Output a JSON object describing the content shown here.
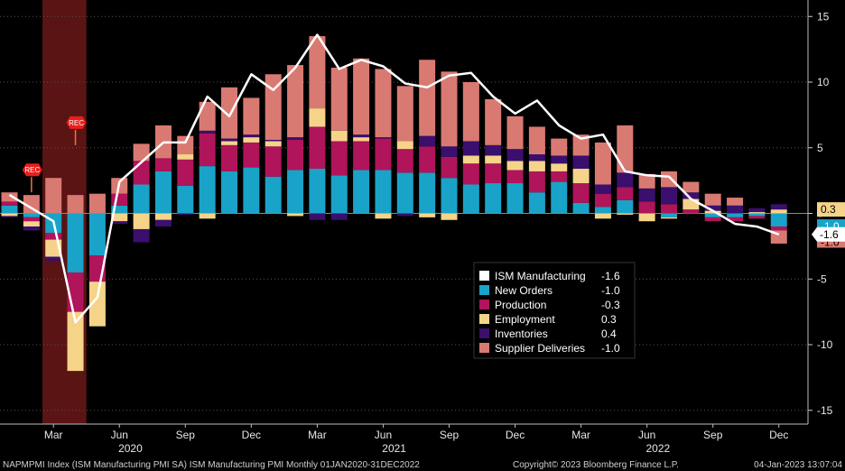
{
  "chart_data": {
    "type": "bar",
    "stacked": true,
    "x": [
      "Jan 2020",
      "Feb 2020",
      "Mar 2020",
      "Apr 2020",
      "May 2020",
      "Jun 2020",
      "Jul 2020",
      "Aug 2020",
      "Sep 2020",
      "Oct 2020",
      "Nov 2020",
      "Dec 2020",
      "Jan 2021",
      "Feb 2021",
      "Mar 2021",
      "Apr 2021",
      "May 2021",
      "Jun 2021",
      "Jul 2021",
      "Aug 2021",
      "Sep 2021",
      "Oct 2021",
      "Nov 2021",
      "Dec 2021",
      "Jan 2022",
      "Feb 2022",
      "Mar 2022",
      "Apr 2022",
      "May 2022",
      "Jun 2022",
      "Jul 2022",
      "Aug 2022",
      "Sep 2022",
      "Oct 2022",
      "Nov 2022",
      "Dec 2022"
    ],
    "ylim": [
      -16,
      16
    ],
    "yticks": [
      15,
      10,
      5,
      0,
      -5,
      -10,
      -15
    ],
    "month_ticks": [
      {
        "index": 2,
        "label": "Mar"
      },
      {
        "index": 5,
        "label": "Jun"
      },
      {
        "index": 8,
        "label": "Sep"
      },
      {
        "index": 11,
        "label": "Dec"
      },
      {
        "index": 14,
        "label": "Mar"
      },
      {
        "index": 17,
        "label": "Jun"
      },
      {
        "index": 20,
        "label": "Sep"
      },
      {
        "index": 23,
        "label": "Dec"
      },
      {
        "index": 26,
        "label": "Mar"
      },
      {
        "index": 29,
        "label": "Jun"
      },
      {
        "index": 32,
        "label": "Sep"
      },
      {
        "index": 35,
        "label": "Dec"
      }
    ],
    "year_ticks": [
      {
        "index": 5.5,
        "label": "2020"
      },
      {
        "index": 17.5,
        "label": "2021"
      },
      {
        "index": 29.5,
        "label": "2022"
      }
    ],
    "recession": {
      "start": 1.5,
      "end": 3.5
    },
    "rec_markers": [
      {
        "index": 1,
        "label": "REC",
        "value": 1.6
      },
      {
        "index": 3,
        "label": "REC",
        "value": 5.2
      }
    ],
    "series": [
      {
        "name": "New Orders",
        "color": "#1aa3c8",
        "latest": "-1.0",
        "values": [
          0.6,
          -0.3,
          -1.5,
          -4.5,
          -3.2,
          0.6,
          2.2,
          3.2,
          2.1,
          3.6,
          3.2,
          3.5,
          2.8,
          3.3,
          3.4,
          2.9,
          3.3,
          3.3,
          3.1,
          3.1,
          2.7,
          2.2,
          2.3,
          2.3,
          1.6,
          2.4,
          0.8,
          0.5,
          1.0,
          0.0,
          -0.3,
          0.0,
          -0.3,
          -0.3,
          -0.2,
          -1.0
        ]
      },
      {
        "name": "Production",
        "color": "#b0145a",
        "latest": "-0.3",
        "values": [
          0.3,
          -0.3,
          -0.5,
          -3.0,
          -2.0,
          0.9,
          1.8,
          1.0,
          2.0,
          2.5,
          2.0,
          1.9,
          2.3,
          2.3,
          3.2,
          2.6,
          2.2,
          2.4,
          1.8,
          2.0,
          1.6,
          1.6,
          1.5,
          1.0,
          1.6,
          0.8,
          1.5,
          1.0,
          1.0,
          0.9,
          0.7,
          0.3,
          -0.3,
          -0.3,
          -0.2,
          -0.3
        ]
      },
      {
        "name": "Employment",
        "color": "#f5d48a",
        "latest": "0.3",
        "values": [
          -0.2,
          -0.4,
          -1.3,
          -4.5,
          -3.4,
          -0.6,
          -1.2,
          -0.5,
          0.4,
          -0.4,
          0.3,
          0.4,
          0.4,
          -0.2,
          1.4,
          0.8,
          0.3,
          -0.4,
          0.6,
          -0.3,
          -0.5,
          0.6,
          0.6,
          0.7,
          0.8,
          0.6,
          1.1,
          -0.4,
          -0.1,
          -0.6,
          -0.1,
          0.8,
          0.2,
          0.0,
          0.1,
          0.3
        ]
      },
      {
        "name": "Inventories",
        "color": "#3a0f6e",
        "latest": "0.4",
        "values": [
          -0.1,
          -0.3,
          -0.3,
          0.0,
          0.0,
          -0.2,
          -1.0,
          -0.5,
          -0.1,
          0.2,
          0.2,
          0.2,
          0.1,
          0.2,
          -0.5,
          -0.5,
          0.2,
          0.1,
          -0.2,
          0.8,
          0.8,
          1.1,
          0.8,
          0.9,
          0.5,
          0.6,
          1.0,
          0.7,
          1.1,
          1.0,
          1.3,
          0.5,
          0.4,
          0.6,
          0.3,
          0.4
        ]
      },
      {
        "name": "Supplier Deliveries",
        "color": "#d97a72",
        "latest": "-1.0",
        "values": [
          0.7,
          1.4,
          2.7,
          1.4,
          1.5,
          1.2,
          1.3,
          2.5,
          1.4,
          2.2,
          3.9,
          2.8,
          5.0,
          5.5,
          5.5,
          4.8,
          5.8,
          5.2,
          4.2,
          5.8,
          5.7,
          4.5,
          3.5,
          2.5,
          2.1,
          1.3,
          1.6,
          3.2,
          3.6,
          1.1,
          1.2,
          0.8,
          0.9,
          0.6,
          0.0,
          -1.0
        ]
      }
    ],
    "line": {
      "name": "ISM Manufacturing",
      "color": "#ffffff",
      "latest": "-1.6",
      "values": [
        1.4,
        0.4,
        -0.6,
        -8.3,
        -6.4,
        2.4,
        3.9,
        5.4,
        5.4,
        8.9,
        7.4,
        10.6,
        9.4,
        11.1,
        13.6,
        11.0,
        11.7,
        11.2,
        9.9,
        9.6,
        10.5,
        10.7,
        8.9,
        7.6,
        8.6,
        6.7,
        5.7,
        6.0,
        3.2,
        2.9,
        2.8,
        1.1,
        0.2,
        -0.8,
        -1.0,
        -1.6
      ]
    },
    "right_labels": [
      {
        "value": 0.3,
        "text": "0.3"
      },
      {
        "value": -1.6,
        "text": "-1.6"
      }
    ]
  },
  "footer": {
    "left": "NAPMPMI Index (ISM Manufacturing PMI SA) ISM Manufacturing PMI  Monthly 01JAN2020-31DEC2022",
    "center": "Copyright© 2023 Bloomberg Finance L.P.",
    "right": "04-Jan-2023 13:07:04"
  }
}
